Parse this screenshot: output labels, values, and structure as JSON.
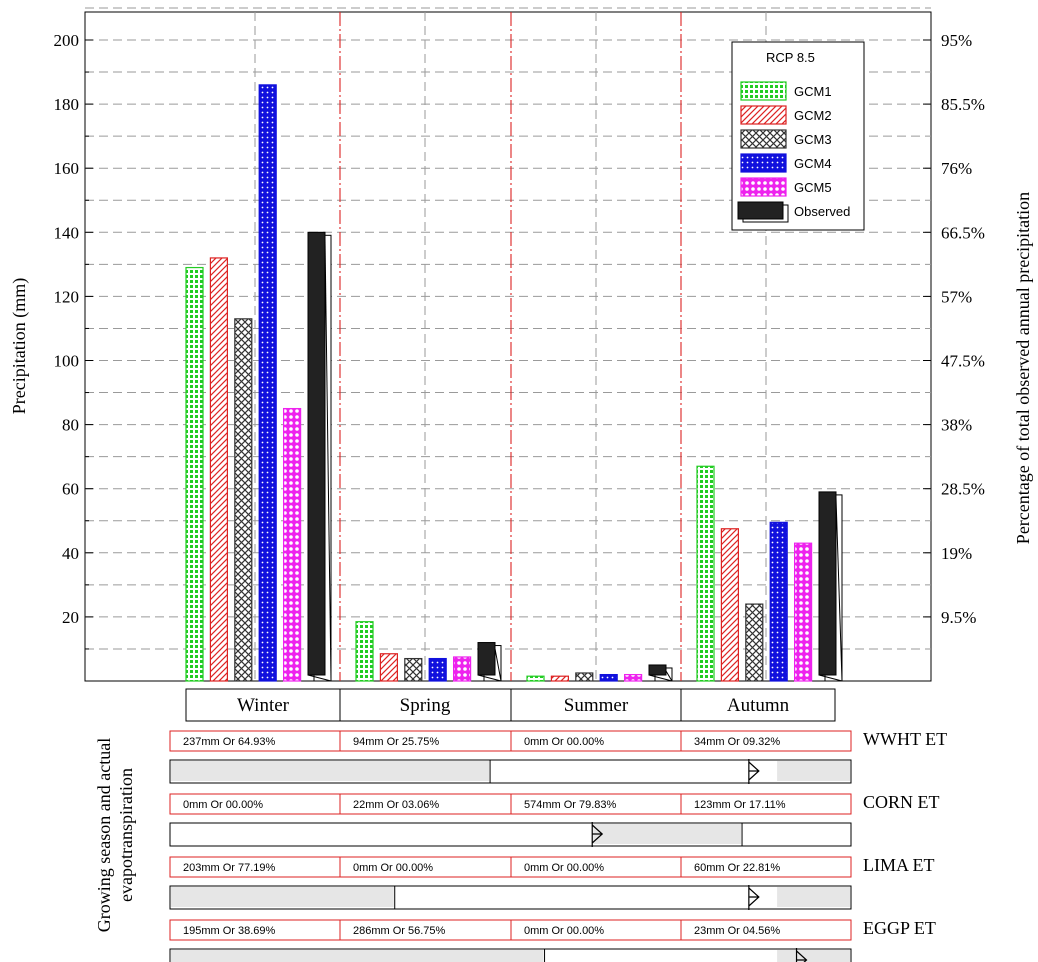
{
  "chart_data": {
    "type": "bar",
    "legend_title": "RCP 8.5",
    "legend_position": "top-right",
    "ylabel": "Precipitation (mm)",
    "y2label": "Percentage of total observed annual precipitation",
    "ylim": [
      0,
      210
    ],
    "yticks": [
      "20",
      "40",
      "60",
      "80",
      "100",
      "120",
      "140",
      "160",
      "180",
      "200"
    ],
    "y2ticks": [
      "9.5%",
      "19%",
      "28.5%",
      "38%",
      "47.5%",
      "57%",
      "66.5%",
      "76%",
      "85.5%",
      "95%"
    ],
    "categories": [
      "Winter",
      "Spring",
      "Summer",
      "Autumn"
    ],
    "series": [
      {
        "name": "GCM1",
        "values": [
          129,
          18.5,
          1.5,
          67
        ],
        "color": "#22cc22"
      },
      {
        "name": "GCM2",
        "values": [
          132,
          8.5,
          1.5,
          47.5
        ],
        "color": "#dd2222"
      },
      {
        "name": "GCM3",
        "values": [
          113,
          7,
          2.5,
          24
        ],
        "color": "#333333"
      },
      {
        "name": "GCM4",
        "values": [
          186,
          7,
          2,
          49.5
        ],
        "color": "#1111dd"
      },
      {
        "name": "GCM5",
        "values": [
          85,
          7.5,
          2,
          43
        ],
        "color": "#ee22ee"
      },
      {
        "name": "Observed",
        "values": [
          140,
          12,
          5,
          59
        ],
        "color": "#222222"
      }
    ],
    "grid": true
  },
  "et_panel": {
    "ylabel_line1": "Growing season and actual",
    "ylabel_line2": "evapotranspiration",
    "rows": [
      {
        "label": "WWHT ET",
        "cells": [
          "237mm Or 64.93%",
          "94mm Or 25.75%",
          "0mm Or 00.00%",
          "34mm Or 09.32%"
        ],
        "shaded": [
          [
            0,
            0.47
          ],
          [
            0.89,
            1
          ]
        ],
        "marker": 0.85
      },
      {
        "label": "CORN ET",
        "cells": [
          "0mm Or 00.00%",
          "22mm Or 03.06%",
          "574mm Or 79.83%",
          "123mm Or 17.11%"
        ],
        "shaded": [
          [
            0.62,
            0.84
          ]
        ],
        "marker": 0.62
      },
      {
        "label": "LIMA ET",
        "cells": [
          "203mm Or 77.19%",
          "0mm Or 00.00%",
          "0mm Or 00.00%",
          "60mm Or 22.81%"
        ],
        "shaded": [
          [
            0,
            0.33
          ],
          [
            0.89,
            1
          ]
        ],
        "marker": 0.85
      },
      {
        "label": "EGGP ET",
        "cells": [
          "195mm Or 38.69%",
          "286mm Or 56.75%",
          "0mm Or 00.00%",
          "23mm Or 04.56%"
        ],
        "shaded": [
          [
            0,
            0.55
          ],
          [
            0.89,
            1
          ]
        ],
        "marker": 0.92
      }
    ]
  }
}
